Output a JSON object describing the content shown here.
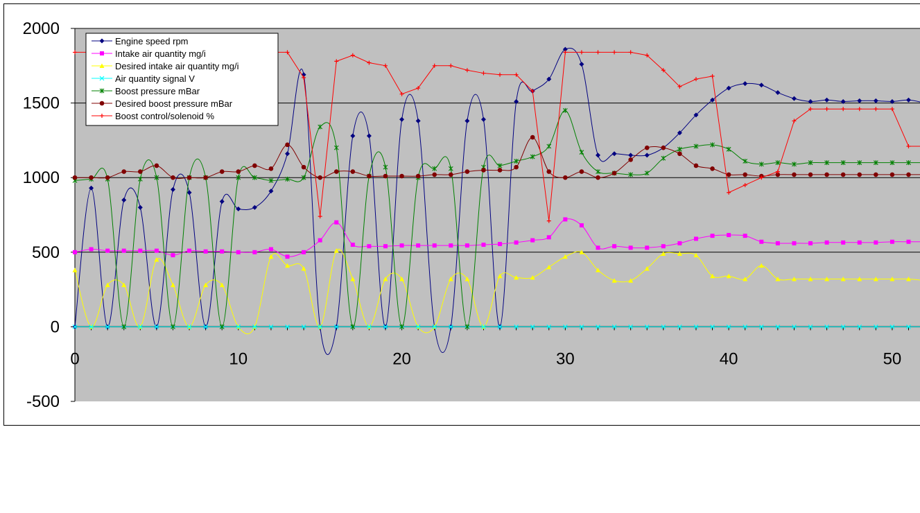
{
  "chart_data": {
    "type": "line",
    "title": "",
    "xlabel": "",
    "ylabel": "",
    "xlim": [
      0,
      52
    ],
    "ylim": [
      -500,
      2000
    ],
    "x_ticks": [
      "0",
      "10",
      "20",
      "30",
      "40",
      "50"
    ],
    "y_ticks": [
      "2000",
      "1500",
      "1000",
      "500",
      "0",
      "-500"
    ],
    "grid": "horizontal",
    "plot_background": "#c0c0c0",
    "legend_position": "top-left",
    "x": [
      0,
      1,
      2,
      3,
      4,
      5,
      6,
      7,
      8,
      9,
      10,
      11,
      12,
      13,
      14,
      15,
      16,
      17,
      18,
      19,
      20,
      21,
      22,
      23,
      24,
      25,
      26,
      27,
      28,
      29,
      30,
      31,
      32,
      33,
      34,
      35,
      36,
      37,
      38,
      39,
      40,
      41,
      42,
      43,
      44,
      45,
      46,
      47,
      48,
      49,
      50,
      51,
      52
    ],
    "series": [
      {
        "name": "Engine speed rpm",
        "color": "#000080",
        "marker": "diamond",
        "values": [
          0,
          930,
          0,
          850,
          800,
          0,
          920,
          900,
          0,
          840,
          790,
          800,
          910,
          1160,
          1690,
          0,
          0,
          1280,
          1280,
          0,
          1390,
          1380,
          0,
          0,
          1380,
          1390,
          0,
          1510,
          1580,
          1660,
          1860,
          1760,
          1150,
          1160,
          1150,
          1150,
          1200,
          1300,
          1420,
          1520,
          1600,
          1630,
          1620,
          1570,
          1530,
          1510,
          1520,
          1510,
          1515,
          1515,
          1510,
          1520,
          1500
        ]
      },
      {
        "name": "Intake air quantity mg/i",
        "color": "#ff00ff",
        "marker": "square",
        "values": [
          500,
          520,
          510,
          510,
          510,
          510,
          480,
          510,
          505,
          505,
          500,
          500,
          520,
          470,
          500,
          580,
          700,
          550,
          540,
          540,
          545,
          545,
          545,
          545,
          545,
          550,
          555,
          565,
          580,
          600,
          720,
          680,
          530,
          540,
          530,
          530,
          540,
          560,
          590,
          610,
          615,
          610,
          570,
          560,
          560,
          560,
          565,
          565,
          565,
          565,
          570,
          570,
          570
        ]
      },
      {
        "name": "Desired intake air quantity mg/i",
        "color": "#ffff00",
        "marker": "triangle",
        "values": [
          380,
          0,
          280,
          280,
          0,
          450,
          280,
          0,
          280,
          280,
          0,
          0,
          470,
          410,
          390,
          0,
          510,
          320,
          0,
          320,
          320,
          0,
          0,
          320,
          320,
          0,
          340,
          330,
          330,
          400,
          470,
          500,
          380,
          310,
          310,
          390,
          490,
          490,
          480,
          340,
          340,
          320,
          410,
          320,
          320,
          320,
          320,
          320,
          320,
          320,
          320,
          320,
          310
        ]
      },
      {
        "name": "Air quantity signal V",
        "color": "#00ffff",
        "marker": "x",
        "values": [
          0,
          0,
          0,
          0,
          0,
          0,
          0,
          0,
          0,
          0,
          0,
          0,
          0,
          0,
          0,
          0,
          0,
          0,
          0,
          0,
          0,
          0,
          0,
          0,
          0,
          0,
          0,
          0,
          0,
          0,
          0,
          0,
          0,
          0,
          0,
          0,
          0,
          0,
          0,
          0,
          0,
          0,
          0,
          0,
          0,
          0,
          0,
          0,
          0,
          0,
          0,
          0,
          0
        ]
      },
      {
        "name": "Boost pressure mBar",
        "color": "#008000",
        "marker": "star",
        "values": [
          980,
          990,
          990,
          0,
          990,
          1000,
          0,
          1000,
          1000,
          0,
          1000,
          1000,
          980,
          990,
          1000,
          1340,
          1200,
          0,
          1010,
          1070,
          0,
          1000,
          1060,
          1060,
          0,
          1070,
          1080,
          1110,
          1140,
          1210,
          1450,
          1170,
          1040,
          1030,
          1020,
          1030,
          1130,
          1190,
          1210,
          1220,
          1190,
          1110,
          1090,
          1100,
          1090,
          1100,
          1100,
          1100,
          1100,
          1100,
          1100,
          1100,
          1100
        ]
      },
      {
        "name": "Desired boost pressure mBar",
        "color": "#800000",
        "marker": "circle",
        "values": [
          1000,
          1000,
          1000,
          1040,
          1040,
          1080,
          1000,
          1000,
          1000,
          1040,
          1040,
          1080,
          1060,
          1220,
          1070,
          1000,
          1040,
          1040,
          1010,
          1010,
          1010,
          1010,
          1020,
          1020,
          1040,
          1050,
          1050,
          1070,
          1270,
          1040,
          1000,
          1040,
          1000,
          1030,
          1120,
          1200,
          1200,
          1160,
          1080,
          1060,
          1020,
          1020,
          1010,
          1020,
          1020,
          1020,
          1020,
          1020,
          1020,
          1020,
          1020,
          1020,
          1020
        ]
      },
      {
        "name": "Boost control/solenoid %",
        "color": "#ff0000",
        "marker": "plus",
        "values": [
          1840,
          1840,
          1840,
          1840,
          1840,
          1840,
          1840,
          1840,
          1840,
          1840,
          1840,
          1840,
          1840,
          1840,
          1670,
          740,
          1780,
          1820,
          1770,
          1750,
          1560,
          1600,
          1750,
          1750,
          1720,
          1700,
          1690,
          1690,
          1580,
          710,
          1840,
          1840,
          1840,
          1840,
          1840,
          1820,
          1720,
          1610,
          1660,
          1680,
          900,
          950,
          1000,
          1040,
          1380,
          1460,
          1460,
          1460,
          1460,
          1460,
          1460,
          1210,
          1210
        ]
      }
    ]
  }
}
